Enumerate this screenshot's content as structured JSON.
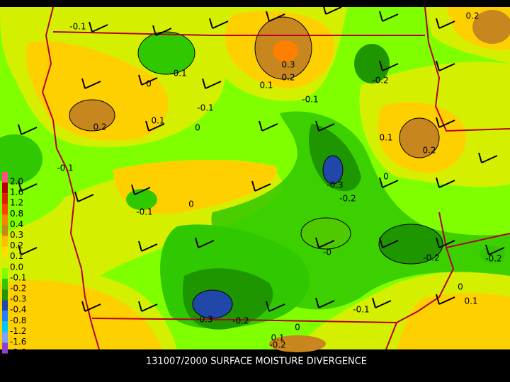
{
  "title": "131007/2000 SURFACE MOISTURE DIVERGENCE",
  "colorbar": [
    {
      "label": "2.0",
      "color": "#ff4f7f"
    },
    {
      "label": "1.6",
      "color": "#b40000"
    },
    {
      "label": "1.2",
      "color": "#e01e00"
    },
    {
      "label": "0.8",
      "color": "#ff4000"
    },
    {
      "label": "0.4",
      "color": "#ff7f00"
    },
    {
      "label": "0.3",
      "color": "#c8861e"
    },
    {
      "label": "0.2",
      "color": "#ffbf00"
    },
    {
      "label": "0.1",
      "color": "#ffe000"
    },
    {
      "label": "0.0",
      "color": "#d4f000"
    },
    {
      "label": "-0.1",
      "color": "#80ff00"
    },
    {
      "label": "-0.2",
      "color": "#30c800"
    },
    {
      "label": "-0.3",
      "color": "#1e9600"
    },
    {
      "label": "-0.4",
      "color": "#2048a8"
    },
    {
      "label": "-0.8",
      "color": "#2080ff"
    },
    {
      "label": "-1.2",
      "color": "#00c8ff"
    },
    {
      "label": "-1.6",
      "color": "#80a0ff"
    },
    {
      "label": "-2.0",
      "color": "#9040d0"
    }
  ],
  "contour_labels": [
    "-0.1",
    "0.2",
    "0.3",
    "0.2",
    "-0.1",
    "0.1",
    "0",
    "-0.2",
    "-0.1",
    "-0.1",
    "0.2",
    "0.1",
    "0",
    "0.1",
    "0.2",
    "-0.1",
    "0",
    "-0.3",
    "-0.2",
    "-0.1",
    "0",
    "-0",
    "-0.2",
    "-0.2",
    "0",
    "0.1",
    "-0.1",
    "-0.3",
    "-0.2",
    "0",
    "0.1",
    "-0.2"
  ]
}
